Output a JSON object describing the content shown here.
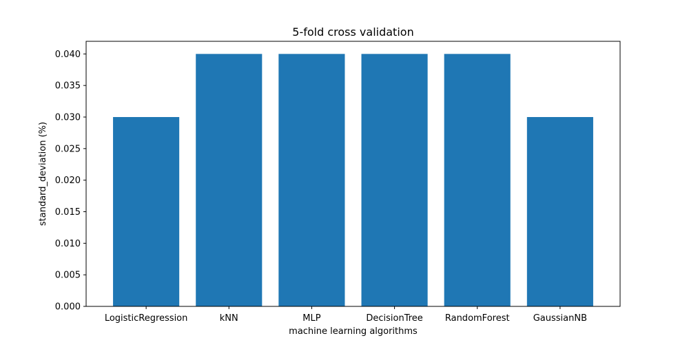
{
  "chart_data": {
    "type": "bar",
    "title": "5-fold cross validation",
    "xlabel": "machine learning algorithms",
    "ylabel": "standard_deviation (%)",
    "categories": [
      "LogisticRegression",
      "kNN",
      "MLP",
      "DecisionTree",
      "RandomForest",
      "GaussianNB"
    ],
    "values": [
      0.03,
      0.04,
      0.04,
      0.04,
      0.04,
      0.03
    ],
    "ylim": [
      0,
      0.042
    ],
    "yticks": [
      "0.000",
      "0.005",
      "0.010",
      "0.015",
      "0.020",
      "0.025",
      "0.030",
      "0.035",
      "0.040"
    ],
    "grid": false,
    "legend": "none",
    "bar_color": "#1f77b4"
  }
}
